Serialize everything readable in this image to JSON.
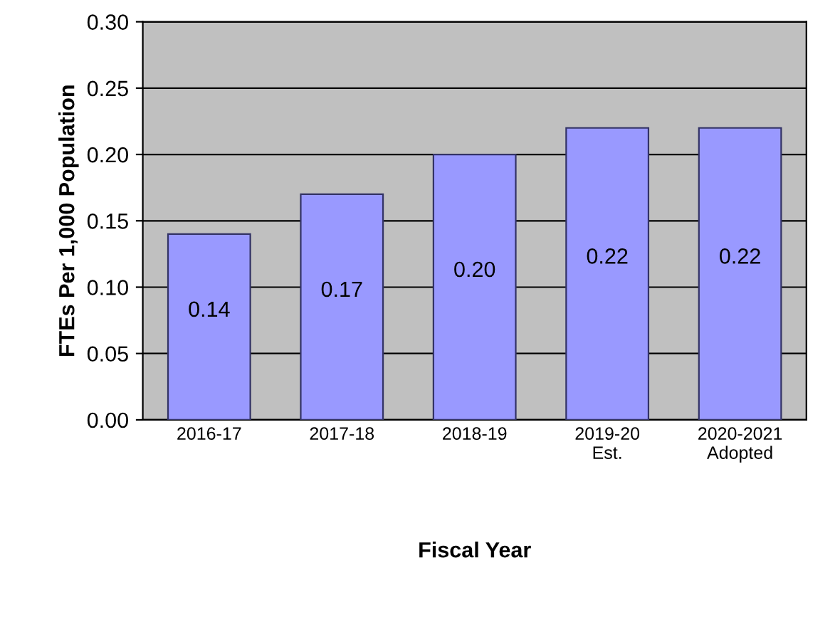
{
  "chart_data": {
    "type": "bar",
    "xlabel": "Fiscal Year",
    "ylabel": "FTEs Per 1,000 Population",
    "categories": [
      "2016-17",
      "2017-18",
      "2018-19",
      "2019-20\nEst.",
      "2020-2021\nAdopted"
    ],
    "values": [
      0.14,
      0.17,
      0.2,
      0.22,
      0.22
    ],
    "value_labels": [
      "0.14",
      "0.17",
      "0.20",
      "0.22",
      "0.22"
    ],
    "color": "#9999ff",
    "ylim": [
      0,
      0.3
    ],
    "yticks": [
      {
        "value": 0,
        "label": "0.00"
      },
      {
        "value": 0.05,
        "label": "0.05"
      },
      {
        "value": 0.1,
        "label": "0.10"
      },
      {
        "value": 0.15,
        "label": "0.15"
      },
      {
        "value": 0.2,
        "label": "0.20"
      },
      {
        "value": 0.25,
        "label": "0.25"
      },
      {
        "value": 0.3,
        "label": "0.30"
      }
    ],
    "grid": "y"
  }
}
